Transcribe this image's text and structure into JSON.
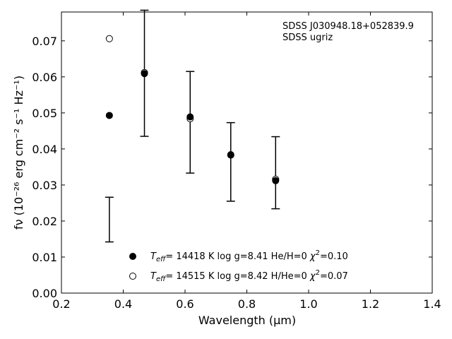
{
  "chart_data": {
    "type": "scatter",
    "annotations": [
      "SDSS J030948.18+052839.9",
      "SDSS ugriz"
    ],
    "xlabel": "Wavelength (μm)",
    "ylabel": "fν (10⁻²⁶ erg cm⁻² s⁻¹ Hz⁻¹)",
    "xlim": [
      0.2,
      1.4
    ],
    "ylim": [
      0.0,
      0.078
    ],
    "xticks": [
      0.2,
      0.4,
      0.6,
      0.8,
      1.0,
      1.2,
      1.4
    ],
    "xtick_labels": [
      "0.2",
      "0.4",
      "0.6",
      "0.8",
      "1.0",
      "1.2",
      "1.4"
    ],
    "yticks": [
      0.0,
      0.01,
      0.02,
      0.03,
      0.04,
      0.05,
      0.06,
      0.07
    ],
    "ytick_labels": [
      "0.00",
      "0.01",
      "0.02",
      "0.03",
      "0.04",
      "0.05",
      "0.06",
      "0.07"
    ],
    "grid": false,
    "legend_position": "bottom-center",
    "observed": {
      "x": [
        0.3551,
        0.4686,
        0.6166,
        0.748,
        0.8932
      ],
      "y": [
        0.0204,
        0.061,
        0.0474,
        0.0364,
        0.0334
      ],
      "yerr": [
        0.0062,
        0.0175,
        0.0141,
        0.0109,
        0.01
      ]
    },
    "series": [
      {
        "name": "Teff= 14418 K  log g=8.41  He/H=0  χ²=0.10",
        "legend_parts": [
          "T",
          "eff",
          "= 14418 K  log g=8.41  He/H=0  ",
          "χ",
          "2",
          "=0.10"
        ],
        "marker": "filled-circle",
        "x": [
          0.3551,
          0.4686,
          0.6166,
          0.748,
          0.8932
        ],
        "y": [
          0.0493,
          0.0609,
          0.0489,
          0.0383,
          0.0312
        ]
      },
      {
        "name": "Teff= 14515 K  log g=8.42  H/He=0  χ²=0.07",
        "legend_parts": [
          "T",
          "eff",
          "= 14515 K  log g=8.42  H/He=0  ",
          "χ",
          "2",
          "=0.07"
        ],
        "marker": "open-circle",
        "x": [
          0.3551,
          0.4686,
          0.6166,
          0.748,
          0.8932
        ],
        "y": [
          0.0706,
          0.0612,
          0.0484,
          0.0384,
          0.0316
        ]
      }
    ]
  }
}
